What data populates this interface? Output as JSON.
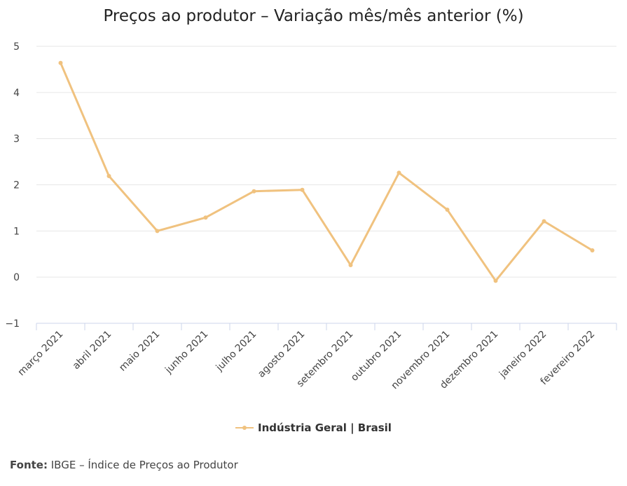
{
  "title": "Preços ao produtor – Variação mês/mês anterior (%)",
  "source": {
    "label": "Fonte:",
    "text": "IBGE – Índice de Preços ao Produtor"
  },
  "legend": {
    "label": "Indústria Geral | Brasil"
  },
  "colors": {
    "series": "#F0C27F",
    "grid": "#e6e6e6",
    "axis": "#ccd6eb"
  },
  "chart_data": {
    "type": "line",
    "title": "Preços ao produtor – Variação mês/mês anterior (%)",
    "xlabel": "",
    "ylabel": "",
    "categories": [
      "março 2021",
      "abril 2021",
      "maio 2021",
      "junho 2021",
      "julho 2021",
      "agosto 2021",
      "setembro 2021",
      "outubro 2021",
      "novembro 2021",
      "dezembro 2021",
      "janeiro 2022",
      "fevereiro 2022"
    ],
    "series": [
      {
        "name": "Indústria Geral | Brasil",
        "values": [
          4.64,
          2.19,
          1.0,
          1.29,
          1.86,
          1.89,
          0.26,
          2.26,
          1.46,
          -0.08,
          1.21,
          0.58
        ]
      }
    ],
    "ylim": [
      -1,
      5
    ],
    "yticks": [
      -1,
      0,
      1,
      2,
      3,
      4,
      5
    ],
    "grid": true,
    "legend": "bottom-center"
  }
}
